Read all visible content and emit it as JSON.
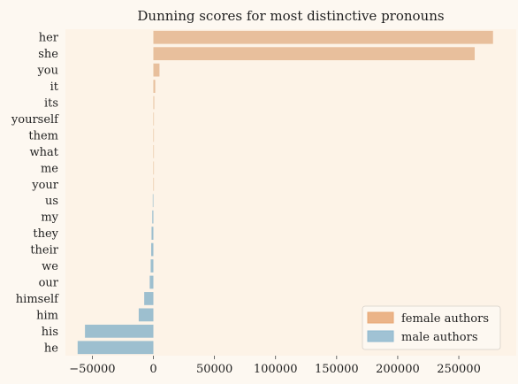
{
  "chart_data": {
    "type": "bar",
    "orientation": "horizontal",
    "title": "Dunning scores for most distinctive pronouns",
    "xlabel": "",
    "ylabel": "",
    "categories": [
      "her",
      "she",
      "you",
      "it",
      "its",
      "yourself",
      "them",
      "what",
      "me",
      "your",
      "us",
      "my",
      "they",
      "their",
      "we",
      "our",
      "himself",
      "him",
      "his",
      "he"
    ],
    "values": [
      278000,
      263000,
      5000,
      1500,
      700,
      200,
      150,
      120,
      100,
      80,
      -500,
      -900,
      -1500,
      -1800,
      -2200,
      -3000,
      -7500,
      -12000,
      -56000,
      -62000
    ],
    "xlim": [
      -72000,
      297000
    ],
    "xticks": [
      -50000,
      0,
      50000,
      100000,
      150000,
      200000,
      250000
    ],
    "xtick_labels": [
      "−50000",
      "0",
      "50000",
      "100000",
      "150000",
      "200000",
      "250000"
    ],
    "grid": false,
    "legend_position": "lower-right",
    "series": [
      {
        "name": "female authors",
        "color": "#e8a876"
      },
      {
        "name": "male authors",
        "color": "#8fb9cf"
      }
    ],
    "colors": {
      "background": "#fdf8f1",
      "plot_background": "#fdf3e7",
      "female_fill": "#e8bf9c",
      "male_fill": "#9dbfcf"
    }
  }
}
